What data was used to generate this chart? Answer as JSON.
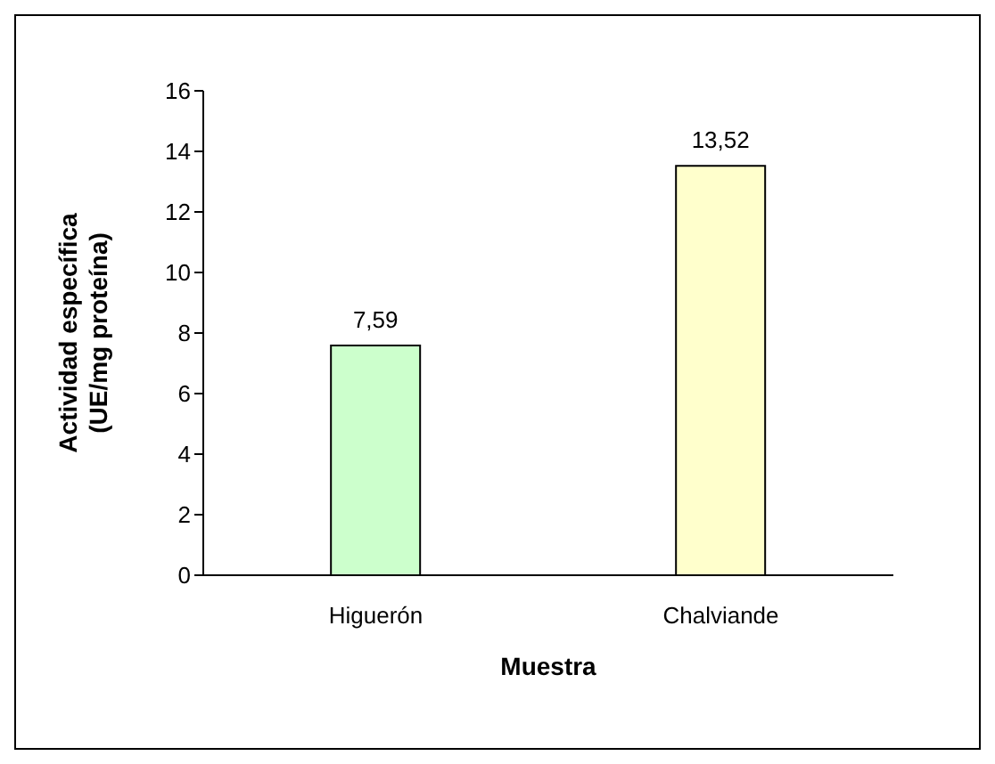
{
  "chart_data": {
    "type": "bar",
    "xlabel": "Muestra",
    "ylabel": "Actividad específica\n(UE/mg proteína)",
    "categories": [
      "Higuerón",
      "Chalviande"
    ],
    "values": [
      7.59,
      13.52
    ],
    "colors": [
      "#ccffcc",
      "#ffffcc"
    ],
    "value_labels": [
      "7,59",
      "13,52"
    ],
    "ylim": [
      0,
      16
    ],
    "yticks": [
      0,
      2,
      4,
      6,
      8,
      10,
      12,
      14,
      16
    ],
    "grid": false,
    "legend": false
  }
}
